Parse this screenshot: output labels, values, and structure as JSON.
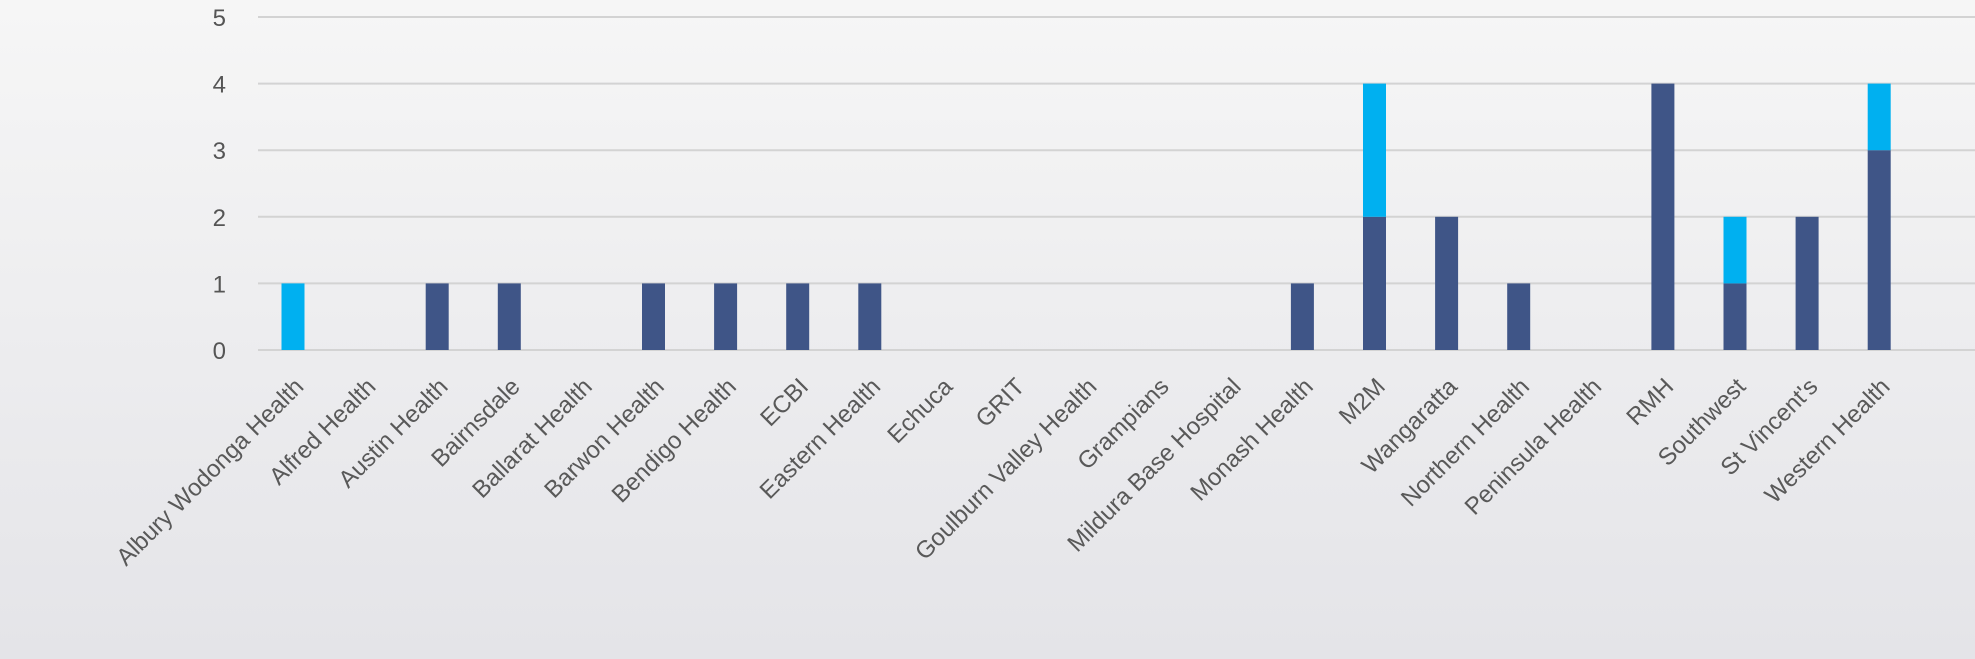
{
  "chart_data": {
    "type": "bar",
    "stacked": true,
    "title": "",
    "xlabel": "",
    "ylabel": "",
    "ylim": [
      0,
      5
    ],
    "yticks": [
      0,
      1,
      2,
      3,
      4,
      5
    ],
    "grid": true,
    "legend": "none",
    "categories": [
      "Albury Wodonga Health",
      "Alfred Health",
      "Austin Health",
      "Bairnsdale",
      "Ballarat Health",
      "Barwon Health",
      "Bendigo Health",
      "ECBI",
      "Eastern Health",
      "Echuca",
      "GRIT",
      "Goulburn Valley Health",
      "Grampians",
      "Mildura Base Hospital",
      "Monash Health",
      "M2M",
      "Wangaratta",
      "Northern Health",
      "Peninsula Health",
      "RMH",
      "Southwest",
      "St Vincent's",
      "Western Health"
    ],
    "series": [
      {
        "color": "#3f5587",
        "values": [
          0,
          0,
          1,
          1,
          0,
          1,
          1,
          1,
          1,
          0,
          0,
          0,
          0,
          0,
          1,
          2,
          2,
          1,
          0,
          4,
          1,
          2,
          3
        ]
      },
      {
        "color": "#00b0f0",
        "values": [
          1,
          0,
          0,
          0,
          0,
          0,
          0,
          0,
          0,
          0,
          0,
          0,
          0,
          0,
          0,
          2,
          0,
          0,
          0,
          0,
          1,
          0,
          1
        ]
      }
    ]
  }
}
